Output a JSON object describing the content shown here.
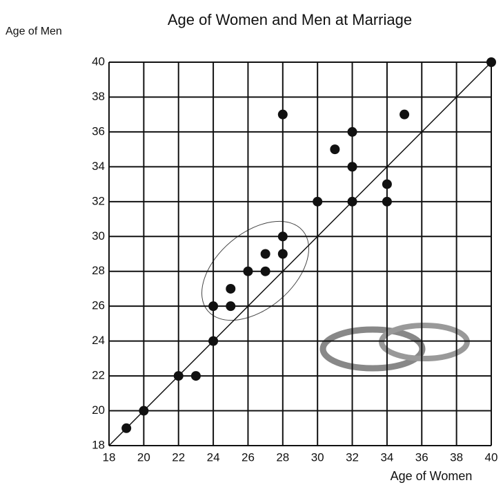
{
  "chart_data": {
    "type": "scatter",
    "title": "Age of Women and Men at Marriage",
    "x_label": "Age of Women",
    "y_label": "Age of Men",
    "series": [
      {
        "color": "#111111",
        "x": [
          19,
          20,
          22,
          23,
          24,
          24,
          25,
          25,
          26,
          27,
          27,
          28,
          28,
          28,
          30,
          31,
          32,
          32,
          32,
          34,
          34,
          35,
          40
        ],
        "values": [
          19,
          20,
          22,
          22,
          24,
          26,
          26,
          27,
          28,
          28,
          29,
          29,
          30,
          37,
          32,
          35,
          32,
          34,
          36,
          32,
          33,
          37,
          40
        ]
      }
    ],
    "xlim": [
      18,
      40
    ],
    "ylim": [
      18,
      40
    ],
    "xticks": [
      18,
      20,
      22,
      24,
      26,
      28,
      30,
      32,
      34,
      36,
      38,
      40
    ],
    "yticks": [
      18,
      20,
      22,
      24,
      26,
      28,
      30,
      32,
      34,
      36,
      38,
      40
    ],
    "grid": true,
    "identity_line": true
  }
}
